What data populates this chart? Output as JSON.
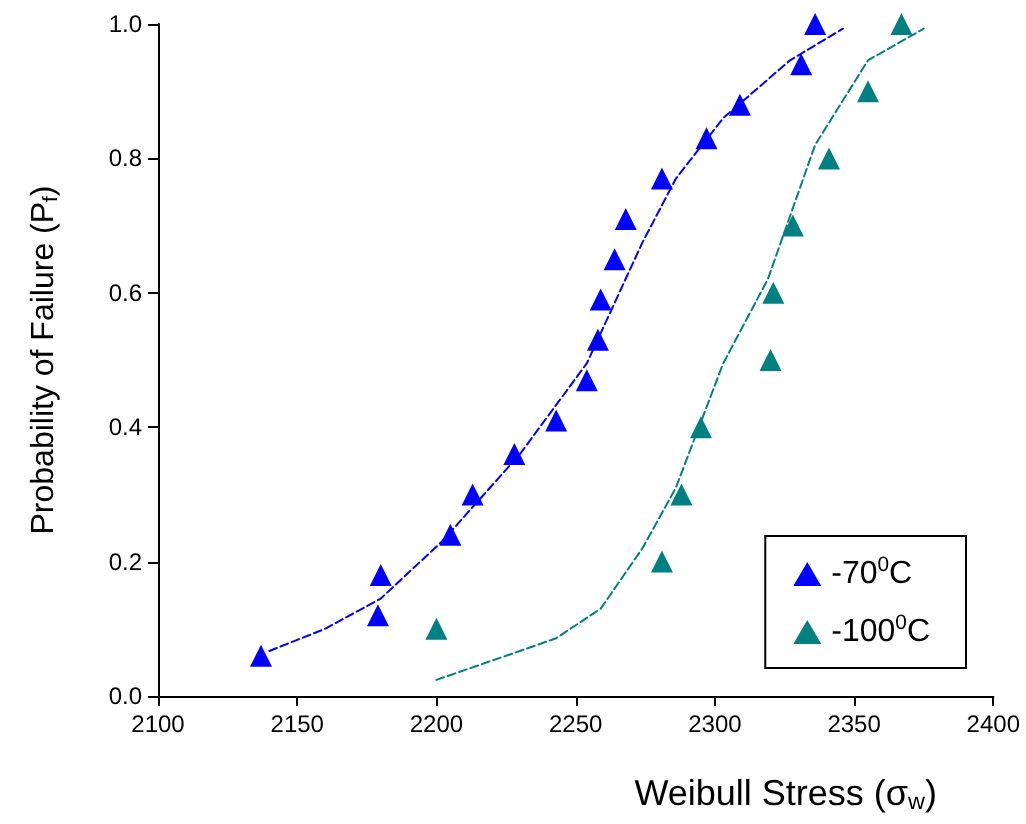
{
  "chart_data": {
    "type": "scatter",
    "xlabel": "Weibull Stress (σ$_{w}$)",
    "ylabel": "Probability of Failure (P$_{f}$)",
    "xlim": [
      2100,
      2400
    ],
    "xticks": [
      2100,
      2150,
      2200,
      2250,
      2300,
      2350,
      2400
    ],
    "ylim": [
      0,
      1
    ],
    "yticks": [
      {
        "value": 0,
        "label": "0.0"
      },
      {
        "value": 0.2,
        "label": "0.2"
      },
      {
        "value": 0.4,
        "label": "0.4"
      },
      {
        "value": 0.6,
        "label": "0.6"
      },
      {
        "value": 0.8,
        "label": "0.8"
      },
      {
        "value": 1,
        "label": "1.0"
      }
    ],
    "grid": false,
    "legend": "bottom right",
    "series": [
      {
        "name": "-70$^{0}$C",
        "type": "scatter",
        "marker": "triangle",
        "color": "#0000ff",
        "x": [
          2137,
          2180,
          2179,
          2205,
          2213,
          2228,
          2243,
          2254,
          2258,
          2259,
          2264,
          2268,
          2281,
          2297,
          2309,
          2331,
          2336
        ],
        "values": [
          0.06,
          0.18,
          0.12,
          0.24,
          0.3,
          0.36,
          0.41,
          0.47,
          0.53,
          0.59,
          0.65,
          0.71,
          0.77,
          0.83,
          0.88,
          0.94,
          1.0
        ]
      },
      {
        "name": "-100$^{0}$C",
        "type": "scatter",
        "marker": "triangle",
        "color": "#008080",
        "x": [
          2200,
          2281,
          2288,
          2295,
          2320,
          2321,
          2328,
          2341,
          2355,
          2367
        ],
        "values": [
          0.1,
          0.2,
          0.3,
          0.4,
          0.5,
          0.6,
          0.7,
          0.8,
          0.9,
          1.0
        ]
      },
      {
        "type": "line",
        "marker": "none",
        "line_style": "dashed",
        "color": "#0000ff",
        "x": [
          2140,
          2160,
          2180,
          2202,
          2230,
          2254,
          2274,
          2286,
          2303,
          2327,
          2346
        ],
        "values": [
          0.067,
          0.1,
          0.145,
          0.23,
          0.36,
          0.495,
          0.675,
          0.77,
          0.86,
          0.946,
          0.993
        ]
      },
      {
        "type": "line",
        "marker": "none",
        "line_style": "dashed",
        "color": "#008080",
        "x": [
          2200,
          2230,
          2243,
          2259,
          2274,
          2286,
          2303,
          2319,
          2336,
          2355,
          2375
        ],
        "values": [
          0.024,
          0.067,
          0.086,
          0.13,
          0.22,
          0.31,
          0.495,
          0.62,
          0.82,
          0.946,
          0.993
        ]
      }
    ]
  }
}
